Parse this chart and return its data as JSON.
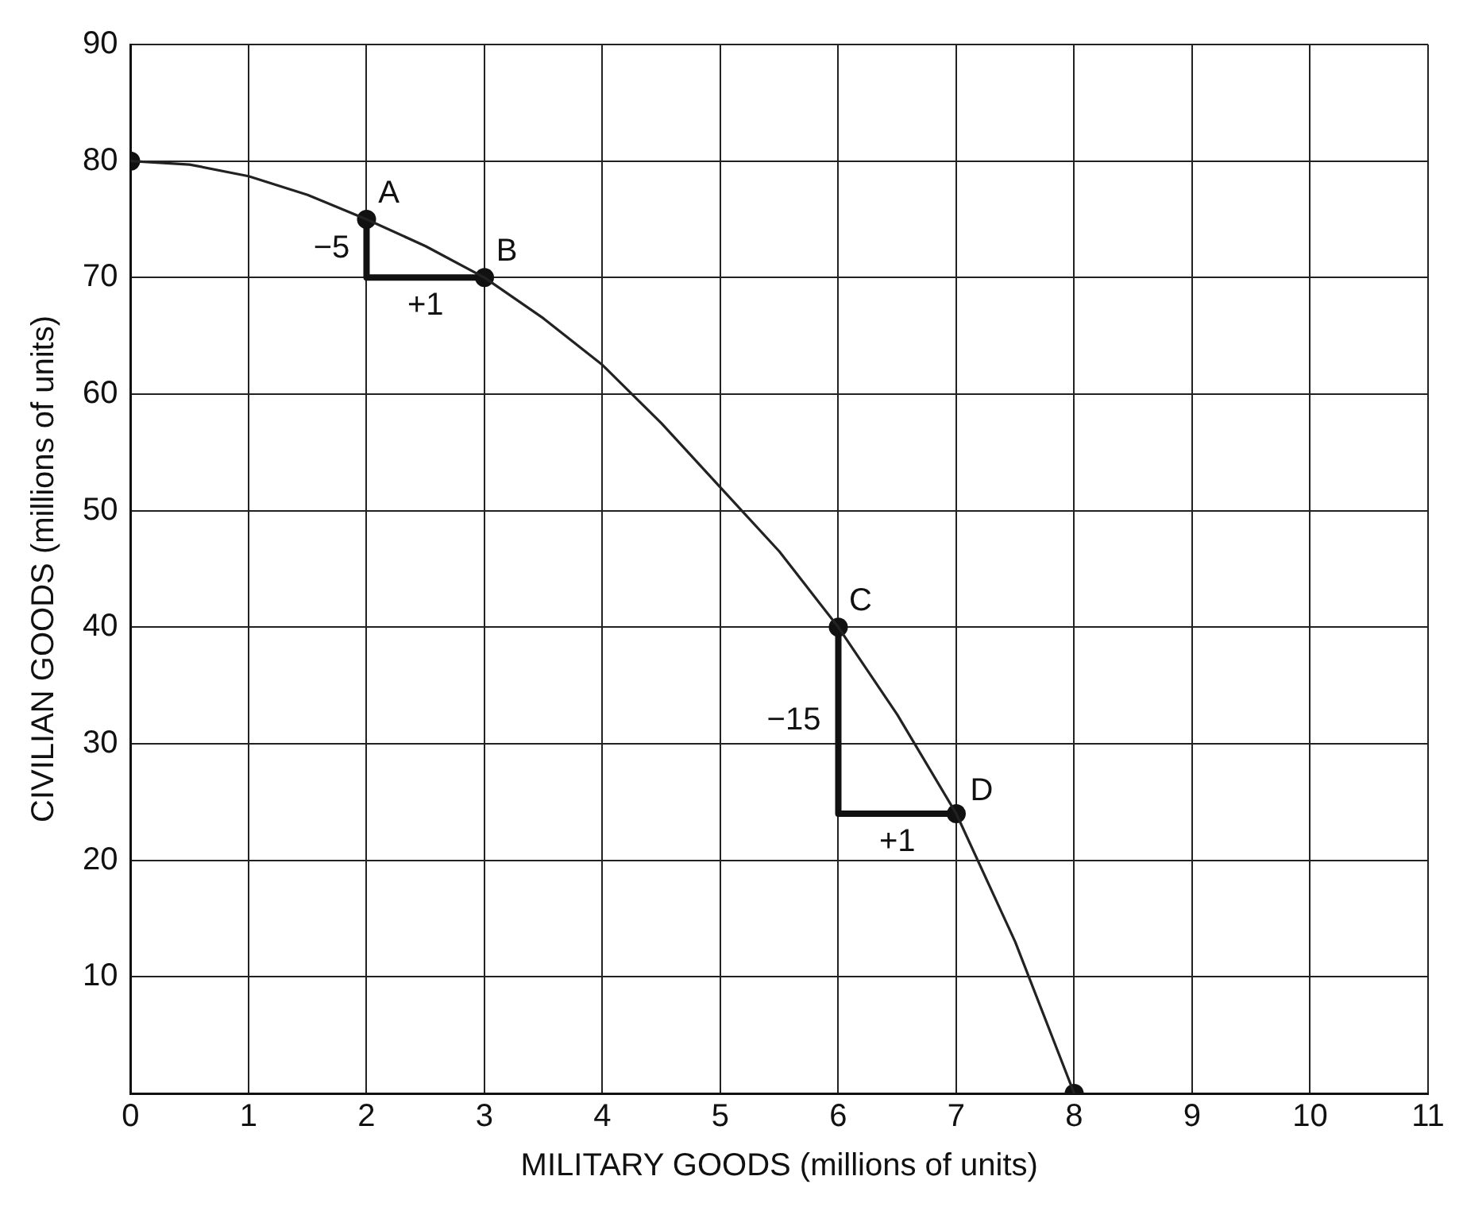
{
  "chart_data": {
    "type": "line",
    "xlabel": "MILITARY GOODS (millions of units)",
    "ylabel": "CIVILIAN GOODS (millions of units)",
    "xlim": [
      0,
      11
    ],
    "xticks": [
      0,
      1,
      2,
      3,
      4,
      5,
      6,
      7,
      8,
      9,
      10,
      11
    ],
    "ylim": [
      0,
      90
    ],
    "yticks": [
      {
        "value": 0,
        "label": null
      },
      10,
      20,
      30,
      40,
      50,
      60,
      70,
      80,
      90
    ],
    "grid": true,
    "series": [
      {
        "color": "#222222",
        "marker": "none",
        "x": [
          0,
          0.5,
          1,
          1.5,
          2,
          2.5,
          3,
          3.5,
          4,
          4.5,
          5,
          5.5,
          6,
          6.5,
          7,
          7.5,
          8
        ],
        "values": [
          80,
          79.7,
          78.7,
          77.1,
          75,
          72.7,
          70,
          66.5,
          62.5,
          57.5,
          52,
          46.5,
          40,
          32.5,
          24,
          13,
          0
        ]
      },
      {
        "type": "scatter",
        "color": "#111111",
        "marker": "circle",
        "x": [
          0,
          2,
          3,
          6,
          7,
          8
        ],
        "values": [
          80,
          75,
          70,
          40,
          24,
          0
        ]
      },
      {
        "color": "#111111",
        "marker": "none",
        "x": [
          2,
          2,
          3
        ],
        "values": [
          75,
          70,
          70
        ]
      },
      {
        "color": "#111111",
        "marker": "none",
        "x": [
          6,
          6,
          7
        ],
        "values": [
          40,
          24,
          24
        ]
      }
    ],
    "annotations": [
      {
        "text": "A",
        "x": 2,
        "y": 75
      },
      {
        "text": "B",
        "x": 3,
        "y": 70
      },
      {
        "text": "C",
        "x": 6,
        "y": 40
      },
      {
        "text": "D",
        "x": 7,
        "y": 24
      },
      {
        "text": "−5",
        "x": 2,
        "y": 72.5
      },
      {
        "text": "+1",
        "x": 2.5,
        "y": 70
      },
      {
        "text": "−15",
        "x": 6,
        "y": 32
      },
      {
        "text": "+1",
        "x": 6.5,
        "y": 24
      }
    ]
  }
}
